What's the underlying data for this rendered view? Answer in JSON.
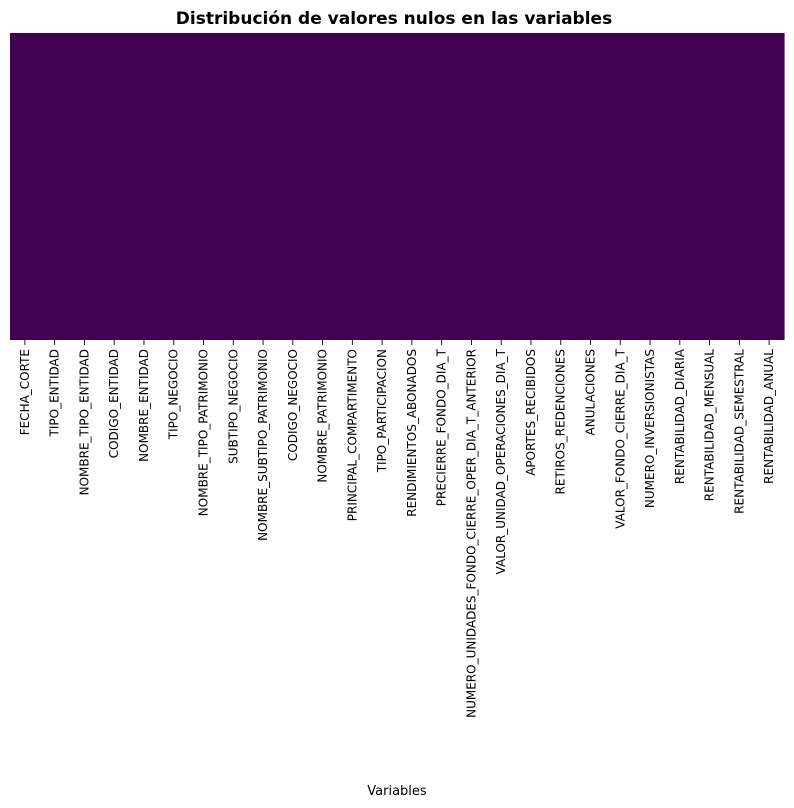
{
  "chart_data": {
    "type": "heatmap",
    "title": "Distribución de valores nulos en las variables",
    "xlabel": "Variables",
    "ylabel": "",
    "colorbar": false,
    "colors": {
      "not_null": "#440154",
      "null": "#fde725"
    },
    "categories": [
      "FECHA_CORTE",
      "TIPO_ENTIDAD",
      "NOMBRE_TIPO_ENTIDAD",
      "CODIGO_ENTIDAD",
      "NOMBRE_ENTIDAD",
      "TIPO_NEGOCIO",
      "NOMBRE_TIPO_PATRIMONIO",
      "SUBTIPO_NEGOCIO",
      "NOMBRE_SUBTIPO_PATRIMONIO",
      "CODIGO_NEGOCIO",
      "NOMBRE_PATRIMONIO",
      "PRINCIPAL_COMPARTIMENTO",
      "TIPO_PARTICIPACION",
      "RENDIMIENTOS_ABONADOS",
      "PRECIERRE_FONDO_DIA_T",
      "NUMERO_UNIDADES_FONDO_CIERRE_OPER_DIA_T_ANTERIOR",
      "VALOR_UNIDAD_OPERACIONES_DIA_T",
      "APORTES_RECIBIDOS",
      "RETIROS_REDENCIONES",
      "ANULACIONES",
      "VALOR_FONDO_CIERRE_DIA_T",
      "NUMERO_INVERSIONISTAS",
      "RENTABILIDAD_DIARIA",
      "RENTABILIDAD_MENSUAL",
      "RENTABILIDAD_SEMESTRAL",
      "RENTABILIDAD_ANUAL"
    ],
    "null_fraction": [
      0,
      0,
      0,
      0,
      0,
      0,
      0,
      0,
      0,
      0,
      0,
      0,
      0,
      0,
      0,
      0,
      0,
      0,
      0,
      0,
      0,
      0,
      0,
      0,
      0,
      0
    ]
  }
}
